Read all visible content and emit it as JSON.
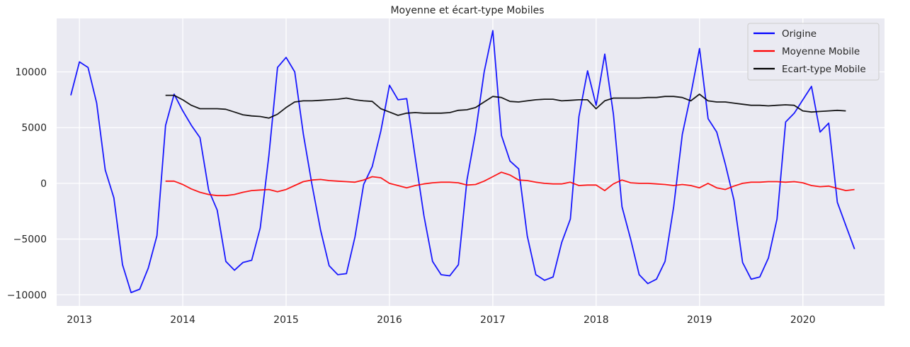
{
  "chart_data": {
    "type": "line",
    "title": "Moyenne et écart-type Mobiles",
    "xlabel": "",
    "ylabel": "",
    "xlim": [
      2012.78,
      2020.79
    ],
    "ylim": [
      -11000,
      14800
    ],
    "xticks": [
      2013,
      2014,
      2015,
      2016,
      2017,
      2018,
      2019,
      2020
    ],
    "xtick_labels": [
      "2013",
      "2014",
      "2015",
      "2016",
      "2017",
      "2018",
      "2019",
      "2020"
    ],
    "yticks": [
      -10000,
      -5000,
      0,
      5000,
      10000
    ],
    "ytick_labels": [
      "−10000",
      "−5000",
      "0",
      "5000",
      "10000"
    ],
    "grid": true,
    "legend_position": "top-right",
    "background_color": "#eaeaf2",
    "series": [
      {
        "name": "Origine",
        "color": "#0000ff",
        "x_start": 2012.917,
        "x_step": 0.08333,
        "values": [
          7900,
          10900,
          10400,
          7200,
          1200,
          -1300,
          -7300,
          -9800,
          -9500,
          -7600,
          -4700,
          5200,
          8000,
          6500,
          5200,
          4100,
          -600,
          -2400,
          -7000,
          -7800,
          -7100,
          -6900,
          -4000,
          2500,
          10400,
          11300,
          10000,
          4400,
          -100,
          -4200,
          -7400,
          -8200,
          -8100,
          -4800,
          -100,
          1500,
          4700,
          8800,
          7500,
          7600,
          2300,
          -2900,
          -7000,
          -8200,
          -8300,
          -7300,
          300,
          4600,
          10000,
          13700,
          4300,
          2000,
          1300,
          -4700,
          -8200,
          -8700,
          -8400,
          -5300,
          -3200,
          6000,
          10100,
          7000,
          11600,
          6200,
          -2100,
          -5000,
          -8200,
          -9000,
          -8600,
          -7000,
          -2100,
          4400,
          8000,
          12100,
          5800,
          4600,
          1700,
          -1500,
          -7100,
          -8600,
          -8400,
          -6700,
          -3200,
          5500,
          6300,
          7500,
          8700,
          4600,
          5400,
          -1700,
          -3800,
          -5900
        ]
      },
      {
        "name": "Moyenne Mobile",
        "color": "#ff0000",
        "x_start": 2013.833,
        "x_step": 0.08333,
        "values": [
          200,
          200,
          -100,
          -500,
          -800,
          -1000,
          -1100,
          -1100,
          -1000,
          -800,
          -650,
          -600,
          -550,
          -750,
          -550,
          -200,
          150,
          300,
          350,
          250,
          200,
          150,
          100,
          300,
          600,
          500,
          0,
          -200,
          -400,
          -200,
          -50,
          50,
          100,
          100,
          50,
          -150,
          -100,
          200,
          600,
          1000,
          750,
          300,
          250,
          100,
          0,
          -50,
          -50,
          100,
          -200,
          -150,
          -150,
          -650,
          -50,
          300,
          50,
          0,
          0,
          -50,
          -100,
          -200,
          -100,
          -200,
          -400,
          0,
          -400,
          -550,
          -250,
          0,
          100,
          100,
          150,
          150,
          100,
          150,
          50,
          -200,
          -300,
          -250,
          -450,
          -650,
          -550
        ]
      },
      {
        "name": "Ecart-type Mobile",
        "color": "#000000",
        "x_start": 2013.833,
        "x_step": 0.08333,
        "values": [
          7900,
          7900,
          7500,
          7000,
          6700,
          6700,
          6700,
          6650,
          6400,
          6150,
          6050,
          6000,
          5850,
          6200,
          6800,
          7300,
          7400,
          7400,
          7450,
          7500,
          7550,
          7650,
          7500,
          7400,
          7350,
          6700,
          6400,
          6100,
          6300,
          6350,
          6300,
          6300,
          6300,
          6350,
          6550,
          6600,
          6800,
          7300,
          7800,
          7700,
          7350,
          7300,
          7400,
          7500,
          7550,
          7550,
          7400,
          7450,
          7500,
          7500,
          6700,
          7400,
          7650,
          7650,
          7650,
          7650,
          7700,
          7700,
          7800,
          7800,
          7700,
          7400,
          8000,
          7400,
          7300,
          7300,
          7200,
          7100,
          7000,
          7000,
          6950,
          7000,
          7050,
          7000,
          6500,
          6400,
          6450,
          6500,
          6550,
          6500
        ]
      }
    ]
  }
}
